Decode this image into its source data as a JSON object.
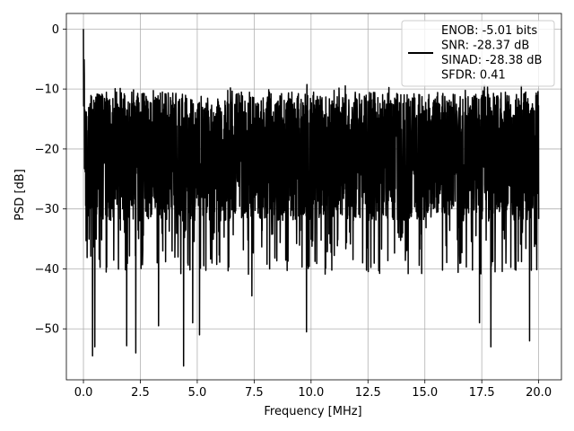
{
  "chart_data": {
    "type": "line",
    "xlabel": "Frequency [MHz]",
    "ylabel": "PSD [dB]",
    "xlim": [
      -0.75,
      21.0
    ],
    "ylim": [
      -58.5,
      2.6
    ],
    "xticks": [
      0.0,
      2.5,
      5.0,
      7.5,
      10.0,
      12.5,
      15.0,
      17.5,
      20.0
    ],
    "xtick_labels": [
      "0.0",
      "2.5",
      "5.0",
      "7.5",
      "10.0",
      "12.5",
      "15.0",
      "17.5",
      "20.0"
    ],
    "yticks": [
      0,
      -10,
      -20,
      -30,
      -40,
      -50
    ],
    "ytick_labels": [
      "0",
      "−10",
      "−20",
      "−30",
      "−40",
      "−50"
    ],
    "grid": true,
    "legend_position": "top-right",
    "legend_lines": [
      "ENOB: -5.01 bits",
      "SNR: -28.37 dB",
      "SINAD: -28.38 dB",
      "SFDR: 0.41"
    ],
    "series": [
      {
        "color": "#000000",
        "x_range": [
          0.0,
          20.0
        ],
        "peak": {
          "x": 0.0,
          "y": 0.0
        },
        "upper_envelope_approx": -10.5,
        "lower_envelope_approx": -32,
        "notable_dips": [
          {
            "x": 0.4,
            "y": -54.5
          },
          {
            "x": 0.5,
            "y": -53.0
          },
          {
            "x": 1.9,
            "y": -52.8
          },
          {
            "x": 2.3,
            "y": -54.0
          },
          {
            "x": 3.3,
            "y": -49.5
          },
          {
            "x": 4.4,
            "y": -56.2
          },
          {
            "x": 4.8,
            "y": -49.0
          },
          {
            "x": 5.1,
            "y": -51.0
          },
          {
            "x": 7.4,
            "y": -44.5
          },
          {
            "x": 9.8,
            "y": -50.5
          },
          {
            "x": 17.4,
            "y": -49.0
          },
          {
            "x": 17.9,
            "y": -53.0
          },
          {
            "x": 19.6,
            "y": -52.0
          }
        ]
      }
    ]
  }
}
